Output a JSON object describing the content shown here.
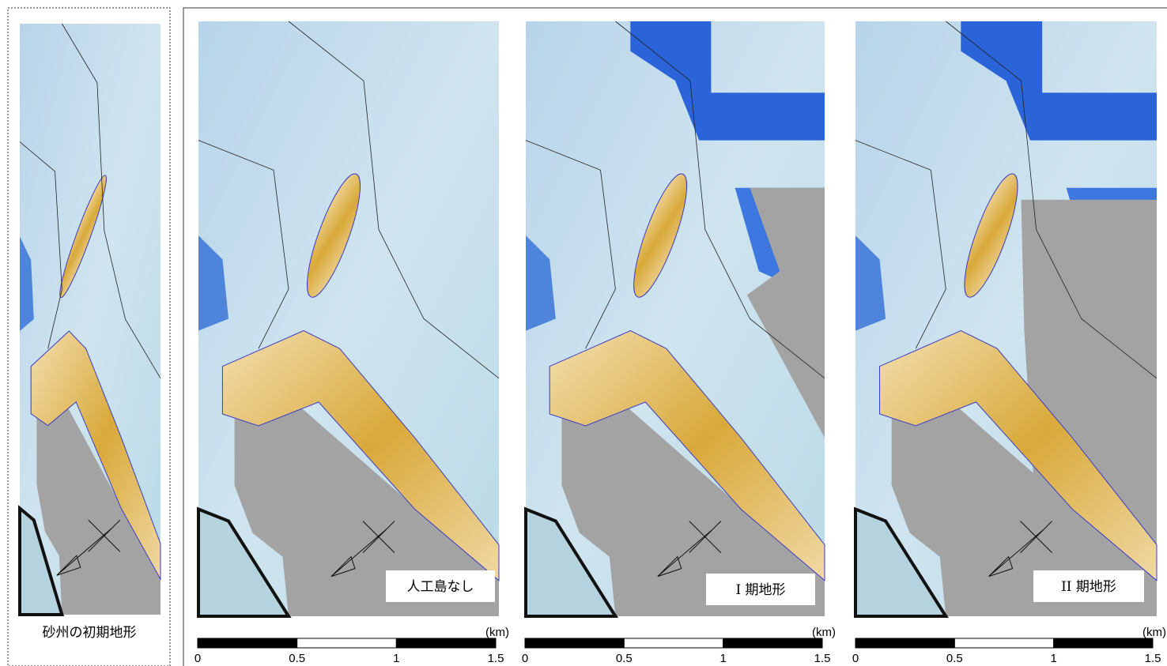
{
  "panels": [
    {
      "caption": "砂州の初期地形"
    },
    {
      "caption": "人工島なし",
      "scale_bar": {
        "unit": "(km)",
        "ticks": [
          0,
          0.5,
          1,
          1.5
        ]
      }
    },
    {
      "caption": "I 期地形",
      "scale_bar": {
        "unit": "(km)",
        "ticks": [
          0,
          0.5,
          1,
          1.5
        ]
      }
    },
    {
      "caption": "II 期地形",
      "scale_bar": {
        "unit": "(km)",
        "ticks": [
          0,
          0.5,
          1,
          1.5
        ]
      }
    }
  ]
}
